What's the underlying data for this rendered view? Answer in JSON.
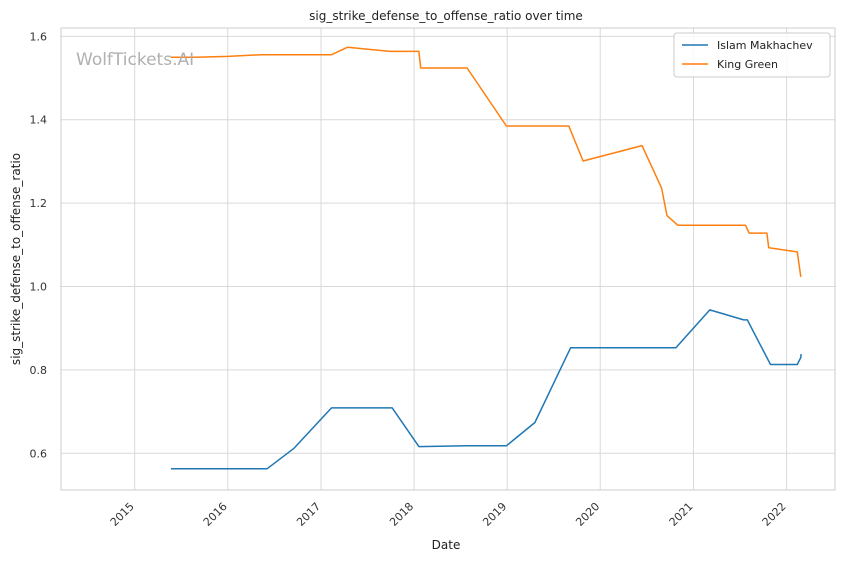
{
  "chart_data": {
    "type": "line",
    "title": "sig_strike_defense_to_offense_ratio over time",
    "xlabel": "Date",
    "ylabel": "sig_strike_defense_to_offense_ratio",
    "x_ticks": [
      "2015",
      "2016",
      "2017",
      "2018",
      "2019",
      "2020",
      "2021",
      "2022"
    ],
    "y_ticks": [
      "0.6",
      "0.8",
      "1.0",
      "1.2",
      "1.4",
      "1.6"
    ],
    "xlim": [
      "2014-03-18",
      "2022-07-10"
    ],
    "ylim": [
      0.512,
      1.62
    ],
    "grid": true,
    "legend_position": "top-right",
    "watermark": "WolfTickets.AI",
    "series": [
      {
        "name": "Islam Makhachev",
        "color": "#1f77b4",
        "points": [
          [
            "2015-05-23",
            0.563
          ],
          [
            "2016-06-04",
            0.563
          ],
          [
            "2016-09-17",
            0.612
          ],
          [
            "2017-02-11",
            0.709
          ],
          [
            "2017-10-07",
            0.709
          ],
          [
            "2018-01-20",
            0.616
          ],
          [
            "2018-07-28",
            0.618
          ],
          [
            "2018-12-29",
            0.618
          ],
          [
            "2019-04-20",
            0.674
          ],
          [
            "2019-09-07",
            0.853
          ],
          [
            "2020-10-24",
            0.853
          ],
          [
            "2021-03-06",
            0.944
          ],
          [
            "2021-07-17",
            0.92
          ],
          [
            "2021-07-31",
            0.92
          ],
          [
            "2021-10-30",
            0.813
          ],
          [
            "2022-02-12",
            0.813
          ],
          [
            "2022-02-26",
            0.83
          ],
          [
            "2022-02-27",
            0.838
          ]
        ]
      },
      {
        "name": "King Green",
        "color": "#ff7f0e",
        "points": [
          [
            "2015-05-23",
            1.55
          ],
          [
            "2015-08-29",
            1.55
          ],
          [
            "2016-01-02",
            1.552
          ],
          [
            "2016-05-14",
            1.556
          ],
          [
            "2017-02-11",
            1.556
          ],
          [
            "2017-04-15",
            1.574
          ],
          [
            "2017-09-30",
            1.564
          ],
          [
            "2018-01-20",
            1.564
          ],
          [
            "2018-01-27",
            1.524
          ],
          [
            "2018-07-28",
            1.524
          ],
          [
            "2018-12-29",
            1.385
          ],
          [
            "2019-08-31",
            1.385
          ],
          [
            "2019-10-26",
            1.301
          ],
          [
            "2020-06-13",
            1.338
          ],
          [
            "2020-08-29",
            1.236
          ],
          [
            "2020-09-19",
            1.17
          ],
          [
            "2020-10-31",
            1.147
          ],
          [
            "2021-07-24",
            1.147
          ],
          [
            "2021-08-07",
            1.128
          ],
          [
            "2021-10-16",
            1.128
          ],
          [
            "2021-10-23",
            1.093
          ],
          [
            "2022-02-12",
            1.083
          ],
          [
            "2022-02-26",
            1.023
          ]
        ]
      }
    ]
  }
}
